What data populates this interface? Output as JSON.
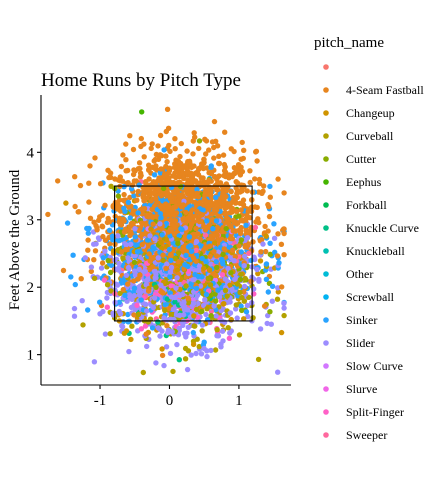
{
  "chart_data": {
    "type": "scatter",
    "title": "Home Runs by Pitch Type",
    "xlabel": "",
    "ylabel": "Feet Above the Ground",
    "xlim": [
      -1.85,
      1.75
    ],
    "ylim": [
      0.55,
      4.85
    ],
    "x_ticks": [
      -1,
      0,
      1
    ],
    "x_tick_labels": [
      "-1",
      "0",
      "1"
    ],
    "y_ticks": [
      1,
      2,
      3,
      4
    ],
    "y_tick_labels": [
      "1",
      "2",
      "3",
      "4"
    ],
    "grid": false,
    "strike_zone": {
      "x": [
        -0.79,
        1.19
      ],
      "y": [
        1.5,
        3.5
      ]
    },
    "legend": {
      "title": "pitch_name",
      "placement": "right",
      "entries": [
        {
          "label": "",
          "color": "#F8766D"
        },
        {
          "label": "4-Seam Fastball",
          "color": "#E7851E"
        },
        {
          "label": "Changeup",
          "color": "#D09400"
        },
        {
          "label": "Curveball",
          "color": "#B2A100"
        },
        {
          "label": "Cutter",
          "color": "#89AC00"
        },
        {
          "label": "Eephus",
          "color": "#45B500"
        },
        {
          "label": "Forkball",
          "color": "#00BC51"
        },
        {
          "label": "Knuckle Curve",
          "color": "#00C087"
        },
        {
          "label": "Knuckleball",
          "color": "#00C0B2"
        },
        {
          "label": "Other",
          "color": "#00BCD6"
        },
        {
          "label": "Screwball",
          "color": "#00B3F2"
        },
        {
          "label": "Sinker",
          "color": "#29A3FF"
        },
        {
          "label": "Slider",
          "color": "#9C8DFF"
        },
        {
          "label": "Slow Curve",
          "color": "#D277FF"
        },
        {
          "label": "Slurve",
          "color": "#F166E8"
        },
        {
          "label": "Split-Finger",
          "color": "#FF61C7"
        },
        {
          "label": "Sweeper",
          "color": "#FF689E"
        }
      ]
    },
    "series": [
      {
        "name": "4-Seam Fastball",
        "color": "#E7851E",
        "center": [
          0.2,
          3.0
        ],
        "spread": [
          0.52,
          0.5
        ],
        "n": 1700
      },
      {
        "name": "Changeup",
        "color": "#D09400",
        "center": [
          0.2,
          2.3
        ],
        "spread": [
          0.5,
          0.45
        ],
        "n": 260
      },
      {
        "name": "Curveball",
        "color": "#B2A100",
        "center": [
          0.15,
          2.0
        ],
        "spread": [
          0.5,
          0.42
        ],
        "n": 260
      },
      {
        "name": "Cutter",
        "color": "#89AC00",
        "center": [
          0.25,
          2.45
        ],
        "spread": [
          0.5,
          0.48
        ],
        "n": 200
      },
      {
        "name": "Eephus",
        "color": "#45B500",
        "center": [
          -0.4,
          4.6
        ],
        "spread": [
          0.0,
          0.0
        ],
        "n": 1
      },
      {
        "name": "Knuckle Curve",
        "color": "#00C087",
        "center": [
          0.1,
          2.0
        ],
        "spread": [
          0.45,
          0.35
        ],
        "n": 40
      },
      {
        "name": "Sinker",
        "color": "#29A3FF",
        "center": [
          0.15,
          2.55
        ],
        "spread": [
          0.55,
          0.45
        ],
        "n": 700
      },
      {
        "name": "Slider",
        "color": "#9C8DFF",
        "center": [
          0.15,
          2.1
        ],
        "spread": [
          0.55,
          0.45
        ],
        "n": 750
      },
      {
        "name": "Slow Curve",
        "color": "#D277FF",
        "center": [
          0.2,
          2.2
        ],
        "spread": [
          0.45,
          0.4
        ],
        "n": 8
      },
      {
        "name": "Split-Finger",
        "color": "#FF61C7",
        "center": [
          0.15,
          2.0
        ],
        "spread": [
          0.45,
          0.35
        ],
        "n": 60
      },
      {
        "name": "Sweeper",
        "color": "#FF689E",
        "center": [
          0.15,
          2.35
        ],
        "spread": [
          0.45,
          0.4
        ],
        "n": 90
      }
    ]
  }
}
